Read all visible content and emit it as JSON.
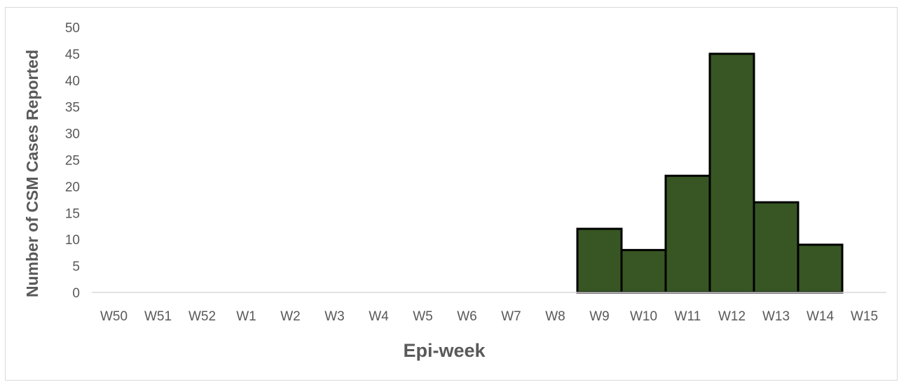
{
  "chart_data": {
    "type": "bar",
    "xlabel": "Epi-week",
    "ylabel": "Number of CSM Cases Reported",
    "categories": [
      "W50",
      "W51",
      "W52",
      "W1",
      "W2",
      "W3",
      "W4",
      "W5",
      "W6",
      "W7",
      "W8",
      "W9",
      "W10",
      "W11",
      "W12",
      "W13",
      "W14",
      "W15"
    ],
    "values": [
      0,
      0,
      0,
      0,
      0,
      0,
      0,
      0,
      0,
      0,
      0,
      12,
      8,
      22,
      45,
      17,
      9,
      0
    ],
    "ylim": [
      0,
      50
    ],
    "yticks": [
      0,
      5,
      10,
      15,
      20,
      25,
      30,
      35,
      40,
      45,
      50
    ],
    "grid": false,
    "legend": "none",
    "bar_color": "#375623",
    "bar_edge_color": "#000000"
  }
}
